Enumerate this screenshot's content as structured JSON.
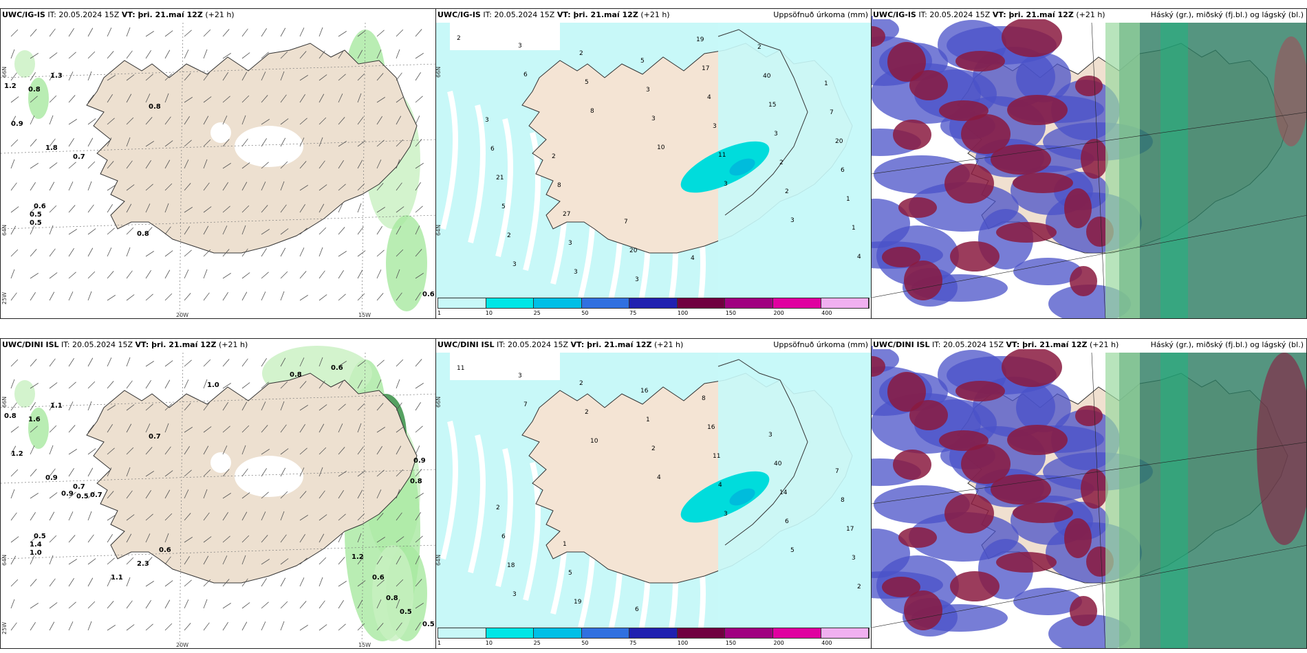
{
  "panels": {
    "p1": {
      "model": "UWC/IG-IS",
      "it": "IT: 20.05.2024 15Z",
      "vt": "VT: þri. 21.maí 12Z",
      "lead": "(+21 h)",
      "right": ""
    },
    "p2": {
      "model": "UWC/IG-IS",
      "it": "IT: 20.05.2024 15Z",
      "vt": "VT: þri. 21.maí 12Z",
      "lead": "(+21 h)",
      "right": "Uppsöfnuð úrkoma (mm)"
    },
    "p3": {
      "model": "UWC/IG-IS",
      "it": "IT: 20.05.2024 15Z",
      "vt": "VT: þri. 21.maí 12Z",
      "lead": "(+21 h)",
      "right": "Háský (gr.), miðský (fj.bl.) og lágský (bl.)"
    },
    "p4": {
      "model": "UWC/DINI ISL",
      "it": "IT: 20.05.2024 15Z",
      "vt": "VT: þri. 21.maí 12Z",
      "lead": "(+21 h)",
      "right": ""
    },
    "p5": {
      "model": "UWC/DINI ISL",
      "it": "IT: 20.05.2024 15Z",
      "vt": "VT: þri. 21.maí 12Z",
      "lead": "(+21 h)",
      "right": "Uppsöfnuð úrkoma (mm)"
    },
    "p6": {
      "model": "UWC/DINI ISL",
      "it": "IT: 20.05.2024 15Z",
      "vt": "VT: þri. 21.maí 12Z",
      "lead": "(+21 h)",
      "right": "Háský (gr.), miðský (fj.bl.) og lágský (bl.)"
    }
  },
  "axis": {
    "lat66": "66N",
    "lat64": "64N",
    "lon25": "25W",
    "lon20": "20W",
    "lon15": "15W"
  },
  "colorbar": {
    "labels": [
      "1",
      "10",
      "25",
      "50",
      "75",
      "100",
      "150",
      "200",
      "400"
    ],
    "colors": [
      "#c8f8f8",
      "#00e6e6",
      "#00bfe6",
      "#3070e0",
      "#2020b0",
      "#700040",
      "#a00080",
      "#e000a0",
      "#f0b0f0"
    ]
  },
  "precip_labels_top": [
    "2",
    "6",
    "8",
    "10",
    "3",
    "3",
    "4",
    "3",
    "5",
    "3",
    "11",
    "2",
    "1",
    "3",
    "2",
    "3",
    "3",
    "2",
    "1",
    "2",
    "3",
    "5",
    "4",
    "3",
    "6",
    "5",
    "3",
    "3",
    "17",
    "15",
    "20",
    "21",
    "27",
    "20",
    "19",
    "40",
    "7",
    "6",
    "8",
    "7",
    "4",
    "2",
    "1",
    "3",
    "2"
  ],
  "precip_labels_bot": [
    "11",
    "7",
    "10",
    "4",
    "3",
    "5",
    "2",
    "3",
    "2",
    "2",
    "4",
    "6",
    "3",
    "3",
    "2",
    "1",
    "11",
    "14",
    "17",
    "18",
    "19",
    "16",
    "16",
    "40",
    "8",
    "6",
    "5",
    "6",
    "8",
    "3",
    "7",
    "2",
    "1"
  ],
  "wind_labels_top": [
    "1.2",
    "0.8",
    "1.3",
    "0.8",
    "0.9",
    "1.8",
    "0.7",
    "0.6",
    "0.5",
    "0.5",
    "0.8",
    "0.6"
  ],
  "wind_labels_bot": [
    "0.8",
    "1.6",
    "1.1",
    "0.7",
    "1.2",
    "0.9",
    "0.7",
    "0.5",
    "1.4",
    "1.0",
    "2.3",
    "0.5",
    "0.9",
    "0.5",
    "0.7",
    "1.1",
    "0.6",
    "1.0",
    "0.8",
    "0.6",
    "1.2",
    "0.6",
    "0.8",
    "0.5",
    "0.9",
    "0.8"
  ]
}
